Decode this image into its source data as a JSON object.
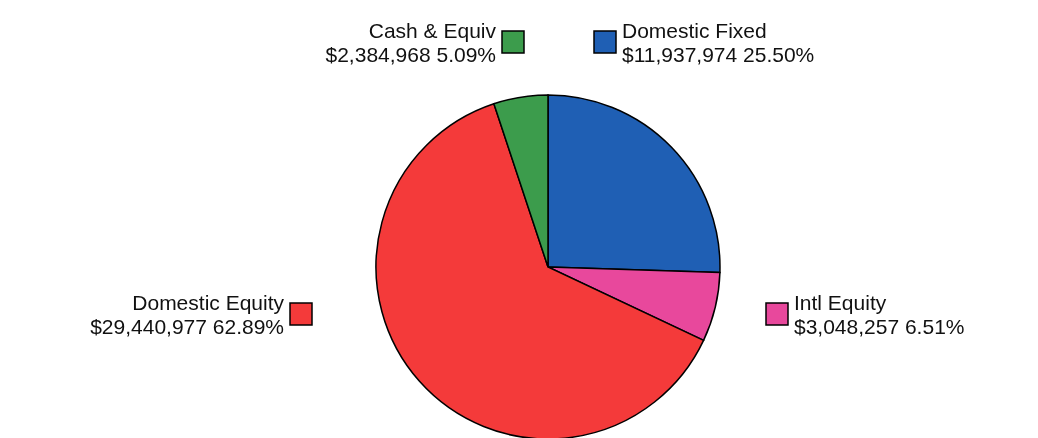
{
  "chart_data": {
    "type": "pie",
    "categories": [
      "Domestic Fixed",
      "Intl Equity",
      "Domestic Equity",
      "Cash & Equiv"
    ],
    "values": [
      11937974,
      3048257,
      29440977,
      2384968
    ],
    "value_labels": [
      "$11,937,974  25.50%",
      "$3,048,257  6.51%",
      "$29,440,977  62.89%",
      "$2,384,968  5.09%"
    ],
    "colors": [
      "#1f5fb4",
      "#e8489c",
      "#f43a3a",
      "#3c9c4c"
    ],
    "legend": "top"
  }
}
